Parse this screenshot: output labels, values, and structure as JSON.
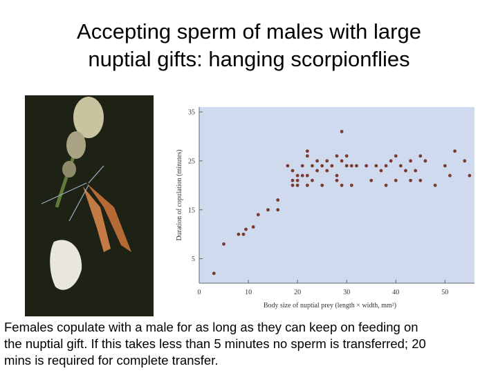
{
  "title_lines": [
    "Accepting sperm of males with large",
    "nuptial gifts: hanging scorpionflies"
  ],
  "caption_lines": [
    "Females copulate with a male for as long as they can keep on feeding on",
    "the nuptial gift. If this takes less than 5 minutes no sperm is transferred; 20",
    "mins is required for complete transfer."
  ],
  "chart_data": {
    "type": "scatter",
    "xlabel": "Body size of nuptial prey (length × width, mm²)",
    "ylabel": "Duration of copulation (minutes)",
    "xlim": [
      0,
      56
    ],
    "ylim": [
      0,
      36
    ],
    "xticks": [
      0,
      10,
      20,
      30,
      40,
      50
    ],
    "yticks": [
      5,
      15,
      25,
      35
    ],
    "background": "#cfdaee",
    "series": [
      {
        "color": "#7a3b2e",
        "x": [
          3,
          5,
          8,
          9,
          9.5,
          11,
          12,
          14,
          16,
          16,
          18,
          19,
          19,
          19,
          20,
          20,
          20,
          21,
          21,
          22,
          22,
          22,
          22,
          23,
          23,
          24,
          24,
          25,
          25,
          26,
          26,
          27,
          28,
          28,
          28,
          29,
          29,
          29,
          30,
          30,
          31,
          32,
          31,
          34,
          35,
          36,
          37,
          38,
          38,
          39,
          40,
          40,
          41,
          42,
          43,
          43,
          44,
          45,
          45,
          46,
          48,
          50,
          51,
          52,
          54,
          55
        ],
        "values": [
          2,
          8,
          10,
          10,
          11,
          11.5,
          14,
          15,
          15,
          17,
          24,
          23,
          21,
          20,
          21,
          22,
          20,
          22,
          24,
          26,
          27,
          22,
          20,
          24,
          21,
          25,
          23,
          24,
          20,
          25,
          23,
          24,
          26,
          22,
          21,
          31,
          25,
          20,
          26,
          24,
          24,
          24,
          20,
          24,
          21,
          24,
          23,
          24,
          20,
          25,
          26,
          21,
          24,
          23,
          25,
          21,
          23,
          26,
          21,
          25,
          20,
          24,
          22,
          27,
          25,
          22
        ]
      }
    ]
  }
}
